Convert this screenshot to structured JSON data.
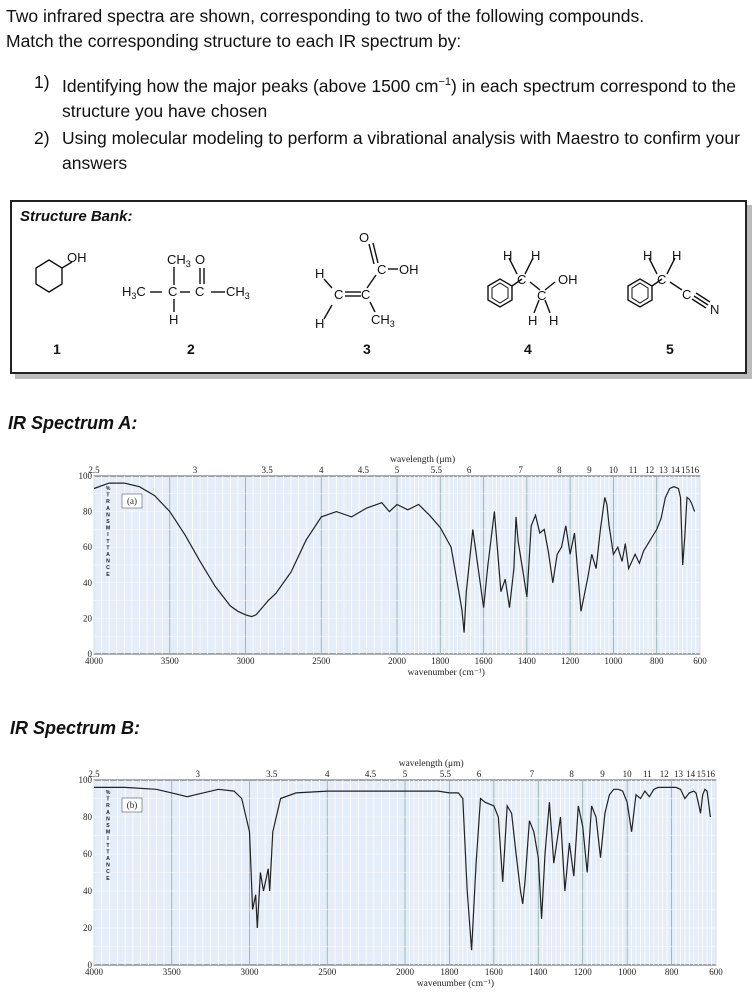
{
  "intro": {
    "line1": "Two infrared spectra are shown, corresponding to two of the following compounds.",
    "line2": "Match the corresponding structure to each IR spectrum by:"
  },
  "steps": [
    {
      "num": "1)",
      "text": "Identifying how the major peaks (above 1500 cm",
      "sup": "−1",
      "text2": ") in each spectrum correspond to the structure you have chosen"
    },
    {
      "num": "2)",
      "text": "Using molecular modeling to perform a vibrational analysis with Maestro to confirm your answers"
    }
  ],
  "bank": {
    "title": "Structure Bank:",
    "numbers": [
      "1",
      "2",
      "3",
      "4",
      "5"
    ]
  },
  "spectra": [
    {
      "title": "IR Spectrum A:",
      "tag": "(a)"
    },
    {
      "title": "IR Spectrum B:",
      "tag": "(b)"
    }
  ],
  "chart_data": [
    {
      "type": "line",
      "title": "IR Spectrum A:",
      "top_axis_label": "wavelength (μm)",
      "xlabel": "wavenumber (cm⁻¹)",
      "ylabel": "%TRANSMITTANCE",
      "top_ticks": [
        "2.5",
        "3",
        "3.5",
        "4",
        "4.5",
        "5",
        "5.5",
        "6",
        "7",
        "8",
        "9",
        "10",
        "11",
        "12",
        "13",
        "14",
        "15",
        "16"
      ],
      "x_ticks": [
        "4000",
        "3500",
        "3000",
        "2500",
        "2000",
        "1800",
        "1600",
        "1400",
        "1200",
        "1000",
        "800",
        "600"
      ],
      "y_ticks": [
        "0",
        "20",
        "40",
        "60",
        "80",
        "100"
      ],
      "ylim": [
        0,
        100
      ],
      "x": [
        4000,
        3900,
        3800,
        3700,
        3600,
        3500,
        3400,
        3300,
        3200,
        3100,
        3050,
        3000,
        2960,
        2930,
        2880,
        2850,
        2800,
        2700,
        2600,
        2500,
        2400,
        2300,
        2200,
        2100,
        2050,
        2000,
        1950,
        1900,
        1850,
        1800,
        1750,
        1700,
        1690,
        1680,
        1650,
        1620,
        1600,
        1580,
        1550,
        1520,
        1500,
        1480,
        1460,
        1450,
        1440,
        1420,
        1400,
        1380,
        1360,
        1340,
        1320,
        1300,
        1280,
        1260,
        1240,
        1220,
        1200,
        1180,
        1150,
        1120,
        1100,
        1080,
        1060,
        1040,
        1030,
        1020,
        1000,
        980,
        960,
        945,
        930,
        900,
        880,
        860,
        840,
        820,
        800,
        780,
        760,
        740,
        720,
        700,
        690,
        680,
        670,
        660,
        650,
        640,
        625
      ],
      "y": [
        93,
        96,
        96,
        94,
        89,
        80,
        67,
        52,
        38,
        27,
        24,
        22,
        21,
        22,
        27,
        30,
        34,
        46,
        64,
        77,
        80,
        77,
        82,
        85,
        80,
        84,
        81,
        84,
        78,
        71,
        60,
        25,
        12,
        35,
        70,
        44,
        26,
        50,
        80,
        35,
        42,
        26,
        48,
        77,
        63,
        48,
        32,
        72,
        78,
        68,
        70,
        57,
        40,
        56,
        60,
        72,
        56,
        68,
        24,
        42,
        56,
        48,
        70,
        88,
        84,
        72,
        56,
        60,
        52,
        62,
        48,
        56,
        51,
        58,
        62,
        66,
        70,
        76,
        88,
        93,
        94,
        93,
        88,
        50,
        66,
        88,
        87,
        85,
        80
      ]
    },
    {
      "type": "line",
      "title": "IR Spectrum B:",
      "top_axis_label": "wavelength (μm)",
      "xlabel": "wavenumber (cm⁻¹)",
      "ylabel": "%TRANSMITTANCE",
      "top_ticks": [
        "2.5",
        "3",
        "3.5",
        "4",
        "4.5",
        "5",
        "5.5",
        "6",
        "7",
        "8",
        "9",
        "10",
        "11",
        "12",
        "13",
        "14",
        "15",
        "16"
      ],
      "x_ticks": [
        "4000",
        "3500",
        "3000",
        "2500",
        "2000",
        "1800",
        "1600",
        "1400",
        "1200",
        "1000",
        "800",
        "600"
      ],
      "y_ticks": [
        "0",
        "20",
        "40",
        "60",
        "80",
        "100"
      ],
      "ylim": [
        0,
        100
      ],
      "x": [
        4000,
        3800,
        3600,
        3500,
        3450,
        3400,
        3350,
        3200,
        3100,
        3050,
        3000,
        2980,
        2960,
        2950,
        2930,
        2910,
        2880,
        2870,
        2850,
        2800,
        2700,
        2500,
        2200,
        2000,
        1900,
        1850,
        1800,
        1760,
        1740,
        1720,
        1700,
        1680,
        1660,
        1640,
        1600,
        1580,
        1560,
        1540,
        1520,
        1500,
        1480,
        1470,
        1460,
        1440,
        1420,
        1400,
        1385,
        1370,
        1350,
        1330,
        1300,
        1280,
        1260,
        1240,
        1220,
        1200,
        1180,
        1160,
        1140,
        1120,
        1100,
        1080,
        1060,
        1040,
        1020,
        1000,
        980,
        960,
        940,
        920,
        900,
        880,
        860,
        840,
        820,
        800,
        780,
        760,
        740,
        720,
        700,
        690,
        680,
        670,
        660,
        650,
        640,
        625
      ],
      "y": [
        96,
        96,
        95,
        93,
        92,
        91,
        92,
        95,
        94,
        90,
        72,
        30,
        38,
        20,
        50,
        40,
        52,
        40,
        72,
        90,
        93,
        94,
        94,
        94,
        94,
        94,
        93,
        93,
        90,
        40,
        8,
        55,
        90,
        88,
        86,
        80,
        45,
        86,
        82,
        60,
        40,
        33,
        45,
        78,
        72,
        58,
        25,
        60,
        88,
        55,
        80,
        40,
        66,
        48,
        86,
        75,
        50,
        86,
        80,
        58,
        82,
        92,
        95,
        95,
        94,
        88,
        72,
        92,
        90,
        94,
        91,
        95,
        96,
        96,
        96,
        96,
        96,
        95,
        90,
        93,
        94,
        93,
        88,
        82,
        92,
        95,
        94,
        80
      ]
    }
  ]
}
